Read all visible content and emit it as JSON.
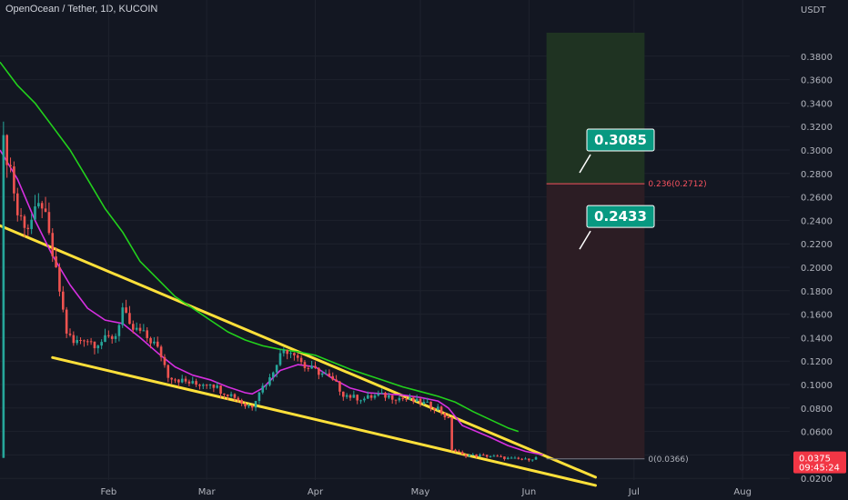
{
  "header": {
    "title": "OpenOcean / Tether, 1D, KUCOIN"
  },
  "colors": {
    "background": "#131722",
    "grid": "#1e222d",
    "candle_up": "#26a69a",
    "candle_down": "#ef5350",
    "ma_fast": "#d62fe0",
    "ma_slow": "#22d11c",
    "trendline": "#ffe03a",
    "target_zone": "#1f3322",
    "stop_zone": "#2c1d24",
    "callout": "#089981",
    "price_badge": "#f23645"
  },
  "chart_data": {
    "type": "candlestick",
    "symbol": "OpenOcean / Tether",
    "interval": "1D",
    "exchange": "KUCOIN",
    "currency": "USDT",
    "ylim": [
      0.011,
      0.4
    ],
    "y_ticks": [
      "0.3800",
      "0.3600",
      "0.3400",
      "0.3200",
      "0.3000",
      "0.2800",
      "0.2600",
      "0.2400",
      "0.2200",
      "0.2000",
      "0.1800",
      "0.1600",
      "0.1400",
      "0.1200",
      "0.1000",
      "0.0800",
      "0.0600",
      "0.0400",
      "0.0200"
    ],
    "x_ticks": [
      {
        "label": "Feb",
        "day": 31
      },
      {
        "label": "Mar",
        "day": 59
      },
      {
        "label": "Apr",
        "day": 90
      },
      {
        "label": "May",
        "day": 120
      },
      {
        "label": "Jun",
        "day": 151
      },
      {
        "label": "Jul",
        "day": 181
      },
      {
        "label": "Aug",
        "day": 212
      }
    ],
    "price_anchors": [
      [
        1,
        0.305
      ],
      [
        3,
        0.285
      ],
      [
        5,
        0.245
      ],
      [
        8,
        0.235
      ],
      [
        12,
        0.255
      ],
      [
        15,
        0.21
      ],
      [
        17,
        0.18
      ],
      [
        19,
        0.145
      ],
      [
        21,
        0.135
      ],
      [
        24,
        0.14
      ],
      [
        27,
        0.135
      ],
      [
        30,
        0.138
      ],
      [
        33,
        0.142
      ],
      [
        35,
        0.165
      ],
      [
        37,
        0.148
      ],
      [
        40,
        0.145
      ],
      [
        44,
        0.135
      ],
      [
        46,
        0.125
      ],
      [
        48,
        0.108
      ],
      [
        52,
        0.103
      ],
      [
        56,
        0.1
      ],
      [
        60,
        0.102
      ],
      [
        63,
        0.095
      ],
      [
        67,
        0.09
      ],
      [
        70,
        0.082
      ],
      [
        72,
        0.082
      ],
      [
        74,
        0.095
      ],
      [
        77,
        0.105
      ],
      [
        79,
        0.12
      ],
      [
        81,
        0.13
      ],
      [
        84,
        0.128
      ],
      [
        87,
        0.115
      ],
      [
        90,
        0.112
      ],
      [
        93,
        0.108
      ],
      [
        96,
        0.1
      ],
      [
        98,
        0.092
      ],
      [
        101,
        0.089
      ],
      [
        104,
        0.088
      ],
      [
        108,
        0.091
      ],
      [
        111,
        0.09
      ],
      [
        115,
        0.088
      ],
      [
        118,
        0.086
      ],
      [
        121,
        0.084
      ],
      [
        125,
        0.08
      ],
      [
        128,
        0.07
      ],
      [
        129,
        0.045
      ],
      [
        132,
        0.04
      ],
      [
        140,
        0.039
      ],
      [
        145,
        0.037
      ],
      [
        150,
        0.036
      ],
      [
        153,
        0.0375
      ]
    ],
    "ma_fast": [
      [
        0,
        0.3
      ],
      [
        5,
        0.275
      ],
      [
        10,
        0.24
      ],
      [
        15,
        0.21
      ],
      [
        20,
        0.185
      ],
      [
        25,
        0.165
      ],
      [
        30,
        0.155
      ],
      [
        35,
        0.152
      ],
      [
        40,
        0.14
      ],
      [
        45,
        0.127
      ],
      [
        50,
        0.115
      ],
      [
        55,
        0.108
      ],
      [
        60,
        0.104
      ],
      [
        65,
        0.098
      ],
      [
        70,
        0.093
      ],
      [
        72,
        0.092
      ],
      [
        75,
        0.097
      ],
      [
        80,
        0.112
      ],
      [
        85,
        0.117
      ],
      [
        90,
        0.115
      ],
      [
        95,
        0.105
      ],
      [
        100,
        0.097
      ],
      [
        105,
        0.093
      ],
      [
        110,
        0.092
      ],
      [
        115,
        0.091
      ],
      [
        120,
        0.089
      ],
      [
        125,
        0.086
      ],
      [
        128,
        0.08
      ],
      [
        132,
        0.065
      ],
      [
        140,
        0.055
      ],
      [
        145,
        0.048
      ],
      [
        150,
        0.043
      ],
      [
        155,
        0.04
      ]
    ],
    "ma_slow": [
      [
        0,
        0.375
      ],
      [
        5,
        0.355
      ],
      [
        10,
        0.34
      ],
      [
        15,
        0.32
      ],
      [
        20,
        0.3
      ],
      [
        25,
        0.275
      ],
      [
        30,
        0.25
      ],
      [
        35,
        0.23
      ],
      [
        40,
        0.205
      ],
      [
        45,
        0.19
      ],
      [
        50,
        0.175
      ],
      [
        55,
        0.165
      ],
      [
        60,
        0.155
      ],
      [
        65,
        0.145
      ],
      [
        70,
        0.138
      ],
      [
        75,
        0.133
      ],
      [
        80,
        0.13
      ],
      [
        85,
        0.128
      ],
      [
        90,
        0.125
      ],
      [
        95,
        0.119
      ],
      [
        100,
        0.113
      ],
      [
        105,
        0.108
      ],
      [
        110,
        0.103
      ],
      [
        115,
        0.098
      ],
      [
        120,
        0.094
      ],
      [
        125,
        0.09
      ],
      [
        130,
        0.085
      ],
      [
        135,
        0.077
      ],
      [
        140,
        0.07
      ],
      [
        145,
        0.063
      ],
      [
        148,
        0.06
      ]
    ],
    "trendlines": [
      {
        "from": [
          -2,
          0.238
        ],
        "to": [
          170,
          0.021
        ]
      },
      {
        "from": [
          15,
          0.123
        ],
        "to": [
          170,
          0.014
        ]
      }
    ],
    "position": {
      "start_day": 156,
      "end_day": 184,
      "entry": 0.0366,
      "stop_level": 0.2712,
      "target_top": 0.4
    },
    "fib_levels": [
      {
        "label": "0.236(0.2712)",
        "value": 0.2712
      },
      {
        "label": "0(0.0366)",
        "value": 0.0366
      }
    ],
    "callouts": [
      {
        "label": "0.3085",
        "value": 0.3085
      },
      {
        "label": "0.2433",
        "value": 0.2433
      }
    ],
    "last_price": {
      "label": "0.0375",
      "countdown": "09:45:24",
      "value": 0.0375
    }
  }
}
